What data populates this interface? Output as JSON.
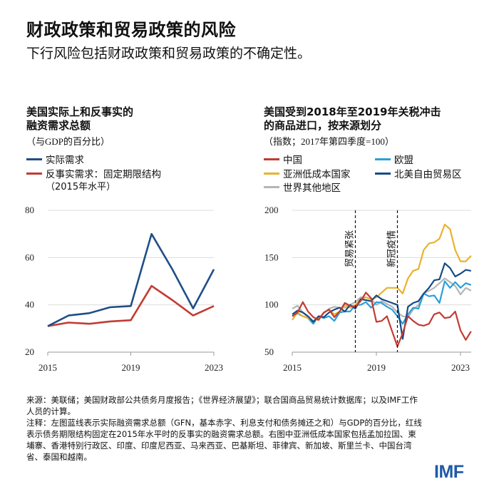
{
  "header": {
    "title": "财政政策和贸易政策的风险",
    "subtitle": "下行风险包括财政政策和贸易政策的不确定性。"
  },
  "chart_data": [
    {
      "type": "line",
      "title": "美国实际上和反事实的融资需求总额",
      "title_lines": [
        "美国实际上和反事实的",
        "融资需求总额"
      ],
      "subtitle": "（与GDP的百分比）",
      "x": [
        2015,
        2016,
        2017,
        2018,
        2019,
        2020,
        2021,
        2022,
        2023
      ],
      "xticks": [
        "2015",
        "2019",
        "2023"
      ],
      "yticks": [
        "20",
        "40",
        "60",
        "80"
      ],
      "ylim": [
        20,
        80
      ],
      "grid": true,
      "legend_placement": "top-left",
      "series": [
        {
          "name": "实际需求",
          "color": "#1f4e85",
          "values": [
            31,
            35.5,
            36.5,
            39,
            39.5,
            70,
            55,
            38.5,
            55
          ]
        },
        {
          "name": "反事实需求：固定期限结构",
          "name_line2": "（2015年水平）",
          "color": "#c23b33",
          "values": [
            31,
            32.5,
            32,
            33,
            33.5,
            48,
            42,
            35.5,
            39.5
          ]
        }
      ]
    },
    {
      "type": "line",
      "title": "美国受到2018年至2019年关税冲击的商品进口，按来源划分",
      "title_lines": [
        "美国受到2018年至2019年关税冲击",
        "的商品进口，按来源划分"
      ],
      "subtitle": "（指数；2017年第四季度=100）",
      "x_start": "2015Q1",
      "x_end": "2023Q3",
      "frequency": "quarterly",
      "xticks": [
        "2015",
        "2019",
        "2023"
      ],
      "yticks": [
        "50",
        "100",
        "150",
        "200"
      ],
      "ylim": [
        50,
        200
      ],
      "grid": true,
      "legend_placement": "top",
      "annotations": [
        {
          "label": "贸易紧张",
          "x": "2018Q1"
        },
        {
          "label": "新冠疫情",
          "x": "2020Q1"
        }
      ],
      "series": [
        {
          "name": "中国",
          "color": "#c23b33",
          "values": [
            88,
            92,
            103,
            93,
            87,
            84,
            92,
            95,
            87,
            93,
            102,
            99,
            98,
            104,
            113,
            107,
            82,
            83,
            88,
            72,
            56,
            70,
            88,
            83,
            79,
            78,
            80,
            90,
            92,
            86,
            87,
            93,
            73,
            63,
            72
          ]
        },
        {
          "name": "欧盟",
          "color": "#2aa0d8",
          "values": [
            88,
            91,
            88,
            86,
            80,
            88,
            86,
            88,
            83,
            92,
            93,
            93,
            100,
            100,
            103,
            97,
            103,
            102,
            98,
            95,
            88,
            80,
            90,
            97,
            96,
            112,
            109,
            110,
            102,
            125,
            118,
            124,
            118,
            123,
            121
          ]
        },
        {
          "name": "亚洲低成本国家",
          "color": "#e8b32e",
          "values": [
            84,
            92,
            88,
            86,
            83,
            85,
            92,
            95,
            90,
            93,
            100,
            97,
            100,
            106,
            108,
            106,
            108,
            113,
            118,
            118,
            118,
            112,
            128,
            136,
            138,
            158,
            165,
            166,
            170,
            185,
            180,
            158,
            146,
            146,
            152
          ]
        },
        {
          "name": "北美自由贸易区",
          "color": "#174a86",
          "values": [
            90,
            94,
            92,
            88,
            82,
            88,
            87,
            92,
            95,
            97,
            93,
            100,
            96,
            106,
            105,
            104,
            110,
            106,
            104,
            102,
            100,
            64,
            98,
            102,
            104,
            112,
            118,
            126,
            127,
            144,
            139,
            130,
            133,
            137,
            136
          ]
        },
        {
          "name": "世界其他地区",
          "color": "#b5b5b5",
          "values": [
            96,
            99,
            92,
            87,
            83,
            86,
            91,
            96,
            98,
            97,
            97,
            100,
            103,
            108,
            108,
            106,
            100,
            104,
            101,
            98,
            92,
            88,
            87,
            95,
            100,
            112,
            115,
            118,
            123,
            128,
            124,
            120,
            111,
            118,
            115
          ]
        }
      ]
    }
  ],
  "footer": {
    "source": "来源：美联储；美国财政部公共债务月度报告；《世界经济展望》；联合国商品贸易统计数据库；以及IMF工作人员的计算。",
    "note": "注释：左图蓝线表示实际融资需求总额（GFN，基本赤字、利息支付和债务摊还之和）与GDP的百分比，红线表示债务期限结构固定在2015年水平时的反事实的融资需求总额。右图中亚洲低成本国家包括孟加拉国、柬埔寨、香港特别行政区、印度、印度尼西亚、马来西亚、巴基斯坦、菲律宾、新加坡、斯里兰卡、中国台湾省、泰国和越南。",
    "logo": "IMF"
  }
}
